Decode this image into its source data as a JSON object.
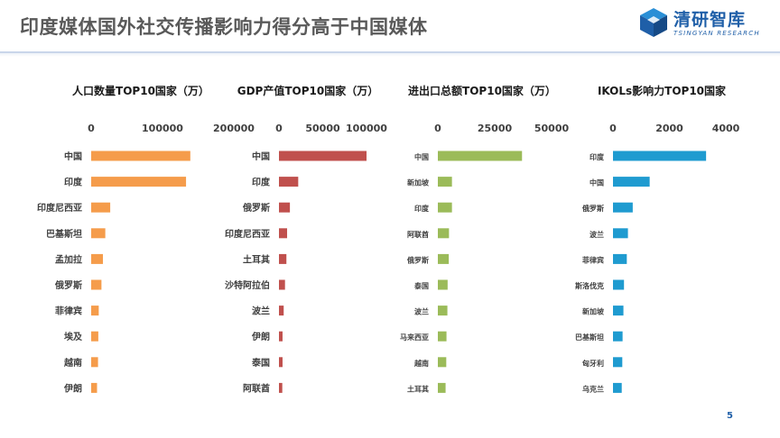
{
  "page": {
    "title": "印度媒体国外社交传播影响力得分高于中国媒体",
    "logo_name": "清研智库",
    "logo_sub": "TSINGYAN RESEARCH",
    "page_number": "5"
  },
  "chart_data": [
    {
      "type": "bar",
      "orientation": "horizontal",
      "title": "人口数量TOP10国家（万）",
      "categories": [
        "中国",
        "印度",
        "印度尼西亚",
        "巴基斯坦",
        "孟加拉",
        "俄罗斯",
        "菲律宾",
        "埃及",
        "越南",
        "伊朗"
      ],
      "values": [
        139000,
        133000,
        26700,
        19800,
        16500,
        14400,
        10600,
        10000,
        9600,
        8200
      ],
      "xlim": [
        0,
        200000
      ],
      "ticks": [
        0,
        100000,
        200000
      ],
      "tick_labels": [
        "0",
        "100000",
        "200000"
      ],
      "color": "#f59c4b",
      "xlabel": "",
      "ylabel": "",
      "grid": false,
      "axis_position": "top"
    },
    {
      "type": "bar",
      "orientation": "horizontal",
      "title": "GDP产值TOP10国家（万）",
      "categories": [
        "中国",
        "印度",
        "俄罗斯",
        "印度尼西亚",
        "土耳其",
        "沙特阿拉伯",
        "波兰",
        "伊朗",
        "泰国",
        "阿联酋"
      ],
      "values": [
        100000,
        22000,
        12500,
        9300,
        8500,
        6900,
        5400,
        4100,
        4100,
        3800
      ],
      "xlim": [
        0,
        100000
      ],
      "ticks": [
        0,
        50000,
        100000
      ],
      "tick_labels": [
        "0",
        "50000",
        "100000"
      ],
      "color": "#c0504d",
      "xlabel": "",
      "ylabel": "",
      "grid": false,
      "axis_position": "top"
    },
    {
      "type": "bar",
      "orientation": "horizontal",
      "title": "进出口总额TOP10国家（万）",
      "categories": [
        "中国",
        "新加坡",
        "印度",
        "阿联酋",
        "俄罗斯",
        "泰国",
        "波兰",
        "马来西亚",
        "越南",
        "土耳其"
      ],
      "values": [
        37000,
        6200,
        6200,
        4900,
        4800,
        4300,
        4200,
        3800,
        3700,
        3400
      ],
      "xlim": [
        0,
        50000
      ],
      "ticks": [
        0,
        25000,
        50000
      ],
      "tick_labels": [
        "0",
        "25000",
        "50000"
      ],
      "color": "#9bbb59",
      "xlabel": "",
      "ylabel": "",
      "grid": false,
      "axis_position": "top"
    },
    {
      "type": "bar",
      "orientation": "horizontal",
      "title": "IKOLs影响力TOP10国家",
      "categories": [
        "印度",
        "中国",
        "俄罗斯",
        "波兰",
        "菲律宾",
        "斯洛伐克",
        "新加坡",
        "巴基斯坦",
        "匈牙利",
        "乌克兰"
      ],
      "values": [
        3300,
        1300,
        700,
        530,
        490,
        390,
        370,
        340,
        330,
        310
      ],
      "xlim": [
        0,
        4000
      ],
      "ticks": [
        0,
        2000,
        4000
      ],
      "tick_labels": [
        "0",
        "2000",
        "4000"
      ],
      "color": "#1f9bd0",
      "xlabel": "",
      "ylabel": "",
      "grid": false,
      "axis_position": "top"
    }
  ]
}
